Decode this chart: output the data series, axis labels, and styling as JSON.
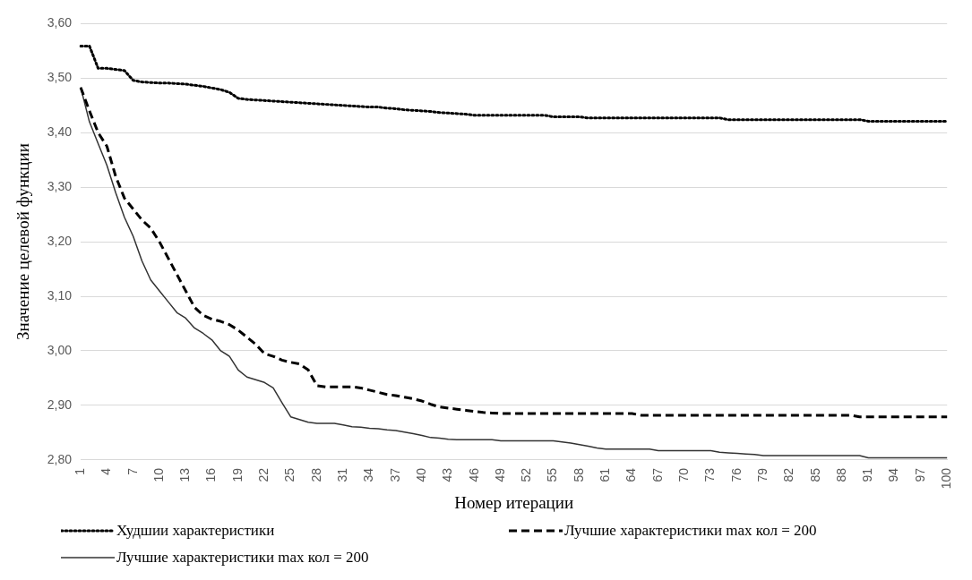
{
  "chart_data": {
    "type": "line",
    "xlabel": "Номер итерации",
    "ylabel": "Значение целевой функции",
    "categories": [
      "1",
      null,
      null,
      "4",
      null,
      null,
      "7",
      null,
      null,
      "10",
      null,
      null,
      "13",
      null,
      null,
      "16",
      null,
      null,
      "19",
      null,
      null,
      "22",
      null,
      null,
      "25",
      null,
      null,
      "28",
      null,
      null,
      "31",
      null,
      null,
      "34",
      null,
      null,
      "37",
      null,
      null,
      "40",
      null,
      null,
      "43",
      null,
      null,
      "46",
      null,
      null,
      "49",
      null,
      null,
      "52",
      null,
      null,
      "55",
      null,
      null,
      "58",
      null,
      null,
      "61",
      null,
      null,
      "64",
      null,
      null,
      "67",
      null,
      null,
      "70",
      null,
      null,
      "73",
      null,
      null,
      "76",
      null,
      null,
      "79",
      null,
      null,
      "82",
      null,
      null,
      "85",
      null,
      null,
      "88",
      null,
      null,
      "91",
      null,
      null,
      "94",
      null,
      null,
      "97",
      null,
      null,
      "100"
    ],
    "ylim": [
      2.8,
      3.6
    ],
    "yticks": [
      {
        "value": 2.8,
        "label": "2,80"
      },
      {
        "value": 2.9,
        "label": "2,90"
      },
      {
        "value": 3.0,
        "label": "3,00"
      },
      {
        "value": 3.1,
        "label": "3,10"
      },
      {
        "value": 3.2,
        "label": "3,20"
      },
      {
        "value": 3.3,
        "label": "3,30"
      },
      {
        "value": 3.4,
        "label": "3,40"
      },
      {
        "value": 3.5,
        "label": "3,50"
      },
      {
        "value": 3.6,
        "label": "3,60"
      }
    ],
    "grid": "y",
    "legend": "bottom",
    "marker": "none",
    "series": [
      {
        "name": "Худшии характеристики",
        "color": "#000000",
        "line_style": "dotted",
        "values": [
          3.559,
          3.559,
          3.518,
          3.518,
          3.516,
          3.514,
          3.496,
          3.493,
          3.492,
          3.491,
          3.491,
          3.49,
          3.489,
          3.487,
          3.485,
          3.482,
          3.479,
          3.474,
          3.463,
          3.461,
          3.46,
          3.459,
          3.458,
          3.457,
          3.456,
          3.455,
          3.454,
          3.453,
          3.452,
          3.451,
          3.45,
          3.449,
          3.448,
          3.447,
          3.447,
          3.445,
          3.444,
          3.442,
          3.441,
          3.44,
          3.439,
          3.437,
          3.436,
          3.435,
          3.434,
          3.432,
          3.432,
          3.432,
          3.432,
          3.432,
          3.432,
          3.432,
          3.432,
          3.432,
          3.429,
          3.429,
          3.429,
          3.429,
          3.427,
          3.427,
          3.427,
          3.427,
          3.427,
          3.427,
          3.427,
          3.427,
          3.427,
          3.427,
          3.427,
          3.427,
          3.427,
          3.427,
          3.427,
          3.427,
          3.424,
          3.424,
          3.424,
          3.424,
          3.424,
          3.424,
          3.424,
          3.424,
          3.424,
          3.424,
          3.424,
          3.424,
          3.424,
          3.424,
          3.424,
          3.424,
          3.421,
          3.421,
          3.421,
          3.421,
          3.421,
          3.421,
          3.421,
          3.421,
          3.421,
          3.421
        ]
      },
      {
        "name": "Лучшие характеристики max кол = 200",
        "color": "#000000",
        "line_style": "dashed",
        "values": [
          3.483,
          3.44,
          3.4,
          3.375,
          3.32,
          3.28,
          3.26,
          3.24,
          3.225,
          3.2,
          3.17,
          3.14,
          3.11,
          3.08,
          3.065,
          3.058,
          3.054,
          3.048,
          3.038,
          3.025,
          3.012,
          2.995,
          2.99,
          2.983,
          2.979,
          2.976,
          2.965,
          2.936,
          2.934,
          2.934,
          2.934,
          2.934,
          2.932,
          2.928,
          2.924,
          2.92,
          2.918,
          2.915,
          2.912,
          2.908,
          2.902,
          2.897,
          2.895,
          2.893,
          2.891,
          2.889,
          2.887,
          2.886,
          2.885,
          2.885,
          2.885,
          2.885,
          2.885,
          2.885,
          2.885,
          2.885,
          2.885,
          2.885,
          2.885,
          2.885,
          2.885,
          2.885,
          2.885,
          2.885,
          2.882,
          2.882,
          2.882,
          2.882,
          2.882,
          2.882,
          2.882,
          2.882,
          2.882,
          2.882,
          2.882,
          2.882,
          2.882,
          2.882,
          2.882,
          2.882,
          2.882,
          2.882,
          2.882,
          2.882,
          2.882,
          2.882,
          2.882,
          2.882,
          2.882,
          2.879,
          2.879,
          2.879,
          2.879,
          2.879,
          2.879,
          2.879,
          2.879,
          2.879,
          2.879,
          2.879
        ]
      },
      {
        "name": "Лучшие характеристики max кол = 200",
        "color": "#333333",
        "line_style": "solid",
        "values": [
          3.483,
          3.42,
          3.38,
          3.34,
          3.29,
          3.245,
          3.21,
          3.165,
          3.13,
          3.11,
          3.09,
          3.07,
          3.06,
          3.042,
          3.032,
          3.02,
          3.0,
          2.99,
          2.965,
          2.952,
          2.947,
          2.942,
          2.932,
          2.905,
          2.879,
          2.874,
          2.869,
          2.867,
          2.867,
          2.867,
          2.864,
          2.861,
          2.86,
          2.858,
          2.857,
          2.855,
          2.854,
          2.851,
          2.848,
          2.845,
          2.841,
          2.84,
          2.838,
          2.837,
          2.837,
          2.837,
          2.837,
          2.837,
          2.835,
          2.835,
          2.835,
          2.835,
          2.835,
          2.835,
          2.835,
          2.833,
          2.831,
          2.828,
          2.825,
          2.822,
          2.82,
          2.82,
          2.82,
          2.82,
          2.82,
          2.82,
          2.817,
          2.817,
          2.817,
          2.817,
          2.817,
          2.817,
          2.817,
          2.814,
          2.813,
          2.812,
          2.811,
          2.81,
          2.808,
          2.808,
          2.808,
          2.808,
          2.808,
          2.808,
          2.808,
          2.808,
          2.808,
          2.808,
          2.808,
          2.808,
          2.804,
          2.804,
          2.804,
          2.804,
          2.804,
          2.804,
          2.804,
          2.804,
          2.804,
          2.804
        ]
      }
    ]
  }
}
